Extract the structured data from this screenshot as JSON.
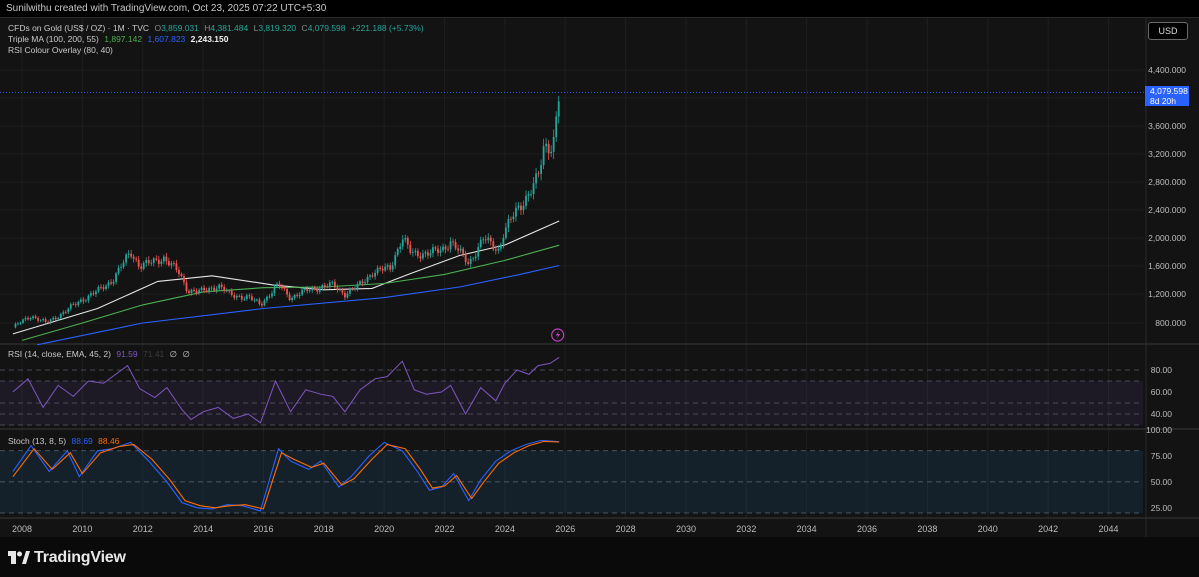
{
  "header": {
    "created_by": "Sunilwithu created with TradingView.com, Oct 23, 2025 07:22 UTC+5:30"
  },
  "legend": {
    "symbol": "CFDs on Gold (US$ / OZ) · 1M · TVC",
    "open_label": "O",
    "open": "3,859.031",
    "high_label": "H",
    "high": "4,381.484",
    "low_label": "L",
    "low": "3,819.320",
    "close_label": "C",
    "close": "4,079.598",
    "change": "+221.188 (+5.73%)",
    "ma_title": "Triple MA (100, 200, 55)",
    "ma_values": [
      "1,897.142",
      "1,607.823",
      "2,243.150"
    ],
    "rsi_overlay": "RSI Colour Overlay (80, 40)"
  },
  "rsi_legend": {
    "title": "RSI (14, close, EMA, 45, 2)",
    "value": "91.59",
    "value2": "71.41",
    "na1": "∅",
    "na2": "∅"
  },
  "stoch_legend": {
    "title": "Stoch (13, 8, 5)",
    "k": "88.69",
    "d": "88.46"
  },
  "currency_button": "USD",
  "price_tag": {
    "price": "4,079.598",
    "countdown": "8d 20h"
  },
  "brand": "TradingView",
  "colors": {
    "up": "#26a69a",
    "down": "#ef5350",
    "ma_white": "#e6e6e6",
    "ma_green": "#4caf50",
    "ma_blue": "#2962ff",
    "rsi_line": "#7e57c2",
    "stoch_k": "#2962ff",
    "stoch_d": "#ff6d00",
    "accent": "#2962ff"
  },
  "chart_data": [
    {
      "type": "candlestick",
      "timeframe": "1M",
      "x_start": "2007-09",
      "ylim": [
        600,
        4500
      ],
      "price_ticks": [
        "800.000",
        "1,200.000",
        "1,600.000",
        "2,000.000",
        "2,400.000",
        "2,800.000",
        "3,200.000",
        "3,600.000",
        "4,000.000",
        "4,400.000"
      ],
      "x_ticks": [
        "2008",
        "2010",
        "2012",
        "2014",
        "2016",
        "2018",
        "2020",
        "2022",
        "2024",
        "2026",
        "2028",
        "2030",
        "2032",
        "2034",
        "2036",
        "2038",
        "2040",
        "2042",
        "2044"
      ],
      "last_close": 4079.598,
      "closes_yearly_points": [
        [
          2007.7,
          740
        ],
        [
          2008.3,
          900
        ],
        [
          2008.8,
          800
        ],
        [
          2009.4,
          950
        ],
        [
          2009.9,
          1100
        ],
        [
          2010.5,
          1240
        ],
        [
          2011.0,
          1400
        ],
        [
          2011.6,
          1800
        ],
        [
          2011.9,
          1600
        ],
        [
          2012.3,
          1650
        ],
        [
          2012.7,
          1720
        ],
        [
          2013.2,
          1500
        ],
        [
          2013.5,
          1250
        ],
        [
          2013.9,
          1230
        ],
        [
          2014.5,
          1320
        ],
        [
          2014.9,
          1190
        ],
        [
          2015.5,
          1150
        ],
        [
          2015.9,
          1060
        ],
        [
          2016.5,
          1330
        ],
        [
          2016.9,
          1150
        ],
        [
          2017.5,
          1260
        ],
        [
          2017.9,
          1300
        ],
        [
          2018.3,
          1330
        ],
        [
          2018.7,
          1200
        ],
        [
          2019.1,
          1300
        ],
        [
          2019.6,
          1500
        ],
        [
          2020.2,
          1580
        ],
        [
          2020.6,
          2000
        ],
        [
          2020.9,
          1780
        ],
        [
          2021.5,
          1780
        ],
        [
          2021.9,
          1830
        ],
        [
          2022.2,
          1950
        ],
        [
          2022.8,
          1640
        ],
        [
          2023.3,
          1990
        ],
        [
          2023.8,
          1830
        ],
        [
          2023.95,
          2070
        ],
        [
          2024.3,
          2330
        ],
        [
          2024.8,
          2650
        ],
        [
          2025.1,
          2850
        ],
        [
          2025.3,
          3300
        ],
        [
          2025.6,
          3350
        ],
        [
          2025.8,
          4079.598
        ]
      ],
      "ma_series": [
        {
          "name": "MA 55",
          "color": "#e6e6e6",
          "points": [
            [
              2007.7,
              650
            ],
            [
              2010.5,
              1000
            ],
            [
              2012.5,
              1380
            ],
            [
              2014.3,
              1460
            ],
            [
              2016.3,
              1330
            ],
            [
              2018.0,
              1260
            ],
            [
              2019.6,
              1280
            ],
            [
              2020.8,
              1480
            ],
            [
              2022.5,
              1750
            ],
            [
              2024.0,
              1900
            ],
            [
              2025.8,
              2243.15
            ]
          ]
        },
        {
          "name": "MA 100",
          "color": "#4caf50",
          "points": [
            [
              2008.0,
              560
            ],
            [
              2010.0,
              800
            ],
            [
              2012.0,
              1050
            ],
            [
              2014.0,
              1230
            ],
            [
              2016.0,
              1290
            ],
            [
              2018.0,
              1300
            ],
            [
              2020.0,
              1350
            ],
            [
              2022.0,
              1480
            ],
            [
              2024.0,
              1680
            ],
            [
              2025.8,
              1897.142
            ]
          ]
        },
        {
          "name": "MA 200",
          "color": "#2962ff",
          "points": [
            [
              2008.5,
              500
            ],
            [
              2012.0,
              800
            ],
            [
              2016.0,
              1000
            ],
            [
              2020.0,
              1150
            ],
            [
              2022.5,
              1300
            ],
            [
              2024.5,
              1480
            ],
            [
              2025.8,
              1607.823
            ]
          ]
        }
      ]
    },
    {
      "type": "line",
      "name": "RSI (14, close, EMA, 45, 2)",
      "ylim": [
        30,
        100
      ],
      "y_ticks": [
        "80.00",
        "60.00",
        "40.00"
      ],
      "bands": [
        80,
        70,
        50,
        40,
        30
      ],
      "points": [
        [
          2007.7,
          60
        ],
        [
          2008.2,
          72
        ],
        [
          2008.7,
          46
        ],
        [
          2009.2,
          66
        ],
        [
          2009.7,
          56
        ],
        [
          2010.2,
          70
        ],
        [
          2010.7,
          68
        ],
        [
          2011.5,
          84
        ],
        [
          2011.9,
          63
        ],
        [
          2012.4,
          55
        ],
        [
          2012.8,
          64
        ],
        [
          2013.3,
          44
        ],
        [
          2013.6,
          35
        ],
        [
          2014.0,
          42
        ],
        [
          2014.5,
          46
        ],
        [
          2015.0,
          36
        ],
        [
          2015.5,
          40
        ],
        [
          2015.9,
          32
        ],
        [
          2016.4,
          70
        ],
        [
          2016.9,
          42
        ],
        [
          2017.4,
          62
        ],
        [
          2017.9,
          58
        ],
        [
          2018.3,
          56
        ],
        [
          2018.7,
          42
        ],
        [
          2019.2,
          62
        ],
        [
          2019.7,
          72
        ],
        [
          2020.1,
          74
        ],
        [
          2020.6,
          88
        ],
        [
          2021.0,
          62
        ],
        [
          2021.4,
          58
        ],
        [
          2021.9,
          60
        ],
        [
          2022.2,
          66
        ],
        [
          2022.7,
          40
        ],
        [
          2023.2,
          64
        ],
        [
          2023.7,
          52
        ],
        [
          2024.0,
          68
        ],
        [
          2024.4,
          80
        ],
        [
          2024.8,
          76
        ],
        [
          2025.1,
          84
        ],
        [
          2025.5,
          86
        ],
        [
          2025.8,
          91.59
        ]
      ]
    },
    {
      "type": "line",
      "name": "Stoch (13, 8, 5)",
      "ylim": [
        20,
        100
      ],
      "y_ticks": [
        "100.00",
        "75.00",
        "50.00",
        "25.00"
      ],
      "bands": [
        80,
        50,
        20
      ],
      "series": [
        {
          "name": "%K",
          "color": "#2962ff",
          "points": [
            [
              2007.7,
              60
            ],
            [
              2008.3,
              85
            ],
            [
              2008.9,
              60
            ],
            [
              2009.5,
              80
            ],
            [
              2009.9,
              55
            ],
            [
              2010.5,
              80
            ],
            [
              2011.0,
              82
            ],
            [
              2011.6,
              88
            ],
            [
              2012.2,
              70
            ],
            [
              2012.8,
              50
            ],
            [
              2013.3,
              30
            ],
            [
              2013.8,
              25
            ],
            [
              2014.3,
              24
            ],
            [
              2014.8,
              28
            ],
            [
              2015.3,
              27
            ],
            [
              2015.9,
              22
            ],
            [
              2016.5,
              82
            ],
            [
              2016.9,
              70
            ],
            [
              2017.5,
              62
            ],
            [
              2017.9,
              70
            ],
            [
              2018.5,
              45
            ],
            [
              2018.9,
              55
            ],
            [
              2019.5,
              75
            ],
            [
              2020.0,
              88
            ],
            [
              2020.6,
              80
            ],
            [
              2021.1,
              60
            ],
            [
              2021.5,
              42
            ],
            [
              2021.9,
              45
            ],
            [
              2022.3,
              58
            ],
            [
              2022.8,
              32
            ],
            [
              2023.2,
              52
            ],
            [
              2023.7,
              70
            ],
            [
              2024.2,
              80
            ],
            [
              2024.7,
              86
            ],
            [
              2025.2,
              90
            ],
            [
              2025.8,
              88.69
            ]
          ]
        },
        {
          "name": "%D",
          "color": "#ff6d00",
          "points": [
            [
              2007.7,
              55
            ],
            [
              2008.4,
              82
            ],
            [
              2009.0,
              62
            ],
            [
              2009.6,
              78
            ],
            [
              2010.0,
              58
            ],
            [
              2010.6,
              78
            ],
            [
              2011.2,
              84
            ],
            [
              2011.7,
              86
            ],
            [
              2012.3,
              72
            ],
            [
              2012.9,
              52
            ],
            [
              2013.4,
              32
            ],
            [
              2013.9,
              27
            ],
            [
              2014.4,
              25
            ],
            [
              2014.9,
              27
            ],
            [
              2015.4,
              28
            ],
            [
              2016.0,
              24
            ],
            [
              2016.6,
              78
            ],
            [
              2017.0,
              72
            ],
            [
              2017.6,
              64
            ],
            [
              2018.0,
              68
            ],
            [
              2018.6,
              47
            ],
            [
              2019.0,
              53
            ],
            [
              2019.6,
              72
            ],
            [
              2020.1,
              86
            ],
            [
              2020.7,
              82
            ],
            [
              2021.2,
              62
            ],
            [
              2021.6,
              44
            ],
            [
              2022.0,
              46
            ],
            [
              2022.4,
              56
            ],
            [
              2022.9,
              34
            ],
            [
              2023.3,
              50
            ],
            [
              2023.8,
              68
            ],
            [
              2024.3,
              78
            ],
            [
              2024.8,
              85
            ],
            [
              2025.3,
              89
            ],
            [
              2025.8,
              88.46
            ]
          ]
        }
      ]
    }
  ]
}
